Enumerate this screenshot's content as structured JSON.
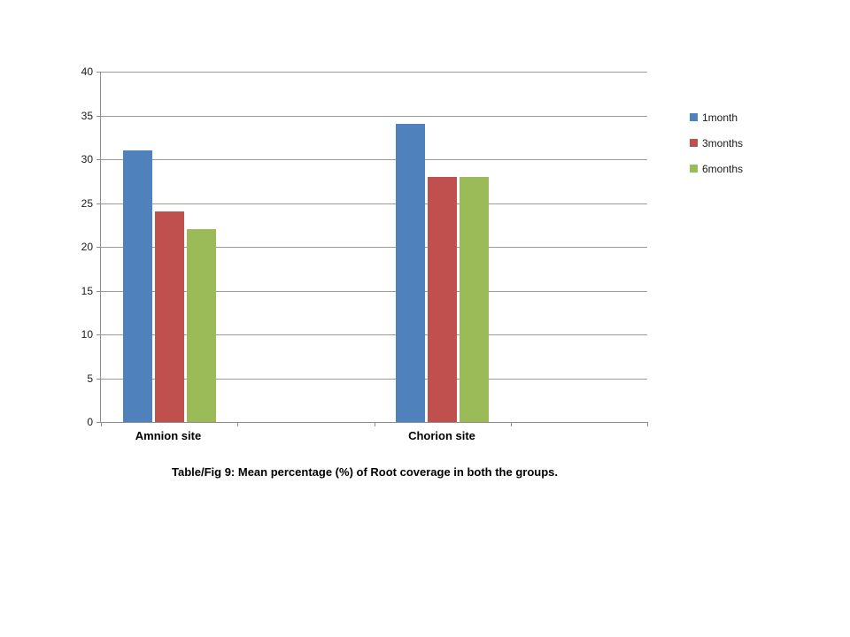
{
  "chart_data": {
    "type": "bar",
    "title": "",
    "categories": [
      "Amnion site",
      "Chorion site"
    ],
    "series": [
      {
        "name": "1month",
        "color": "#4F81BD",
        "values": [
          31,
          34
        ]
      },
      {
        "name": "3months",
        "color": "#C0504D",
        "values": [
          24,
          28
        ]
      },
      {
        "name": "6months",
        "color": "#9BBB59",
        "values": [
          22,
          28
        ]
      }
    ],
    "ylabel": "",
    "xlabel": "",
    "ylim": [
      0,
      40
    ],
    "yticks": [
      0,
      5,
      10,
      15,
      20,
      25,
      30,
      35,
      40
    ],
    "grid": true,
    "legend_position": "right",
    "slot_count": 4,
    "slot_indices": [
      0,
      2
    ],
    "axis_color": "#8c8c8c",
    "grid_color": "#9b9b9b"
  },
  "caption": {
    "text": "Table/Fig 9: Mean percentage (%) of Root coverage in both the groups."
  }
}
